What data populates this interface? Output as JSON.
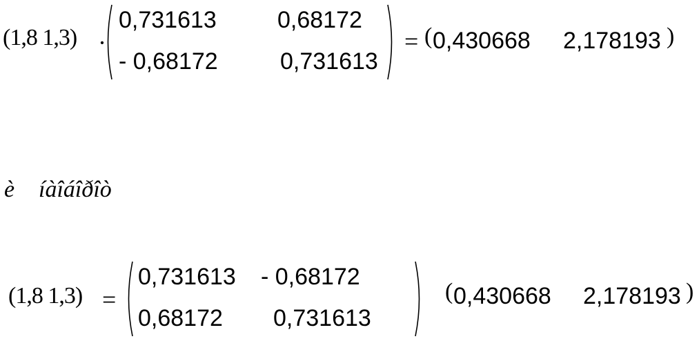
{
  "eq1": {
    "row_vector": "(1,8  1,3)",
    "dot_operator": "·",
    "matrix": [
      [
        "0,731613",
        "0,68172"
      ],
      [
        "-  0,68172",
        "0,731613"
      ]
    ],
    "equals": "=",
    "result_open": "(",
    "result": [
      "0,430668",
      "2,178193"
    ],
    "result_close": ")"
  },
  "middle_text": [
    "è",
    "íàîáîðîò"
  ],
  "eq2": {
    "row_vector": "(1,8  1,3)",
    "equals": "=",
    "matrix": [
      [
        "0,731613",
        "-  0,68172"
      ],
      [
        "0,68172",
        "0,731613"
      ]
    ],
    "result_open": "(",
    "result": [
      "0,430668",
      "2,178193"
    ],
    "result_close": ")"
  }
}
